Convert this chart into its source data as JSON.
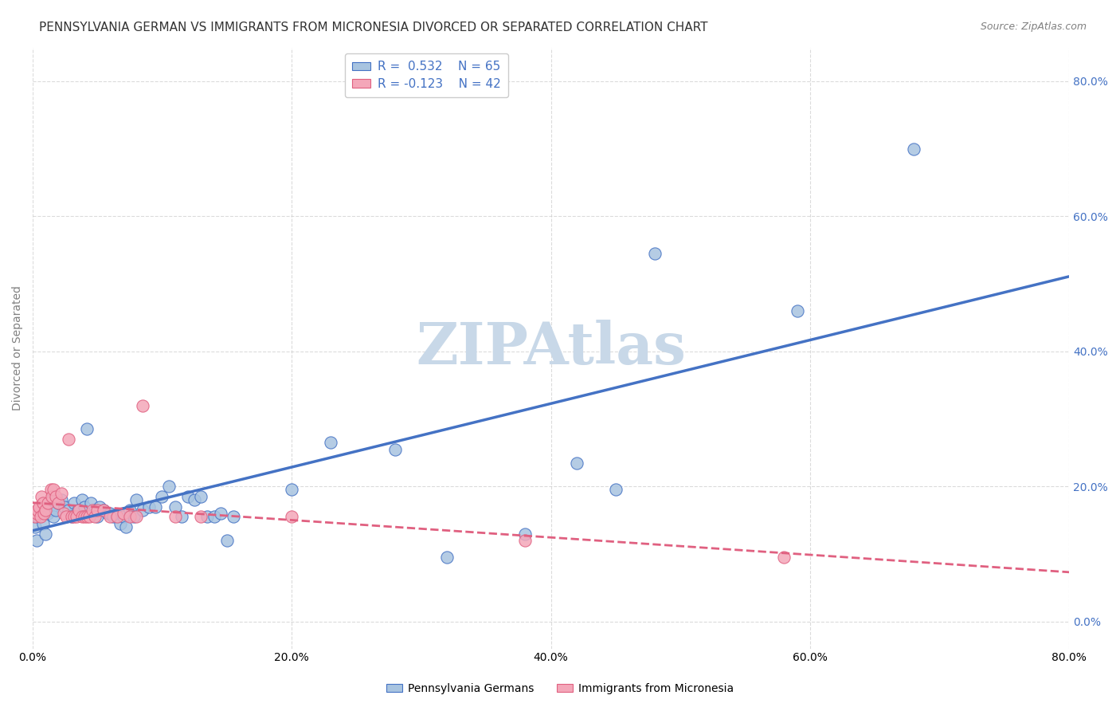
{
  "title": "PENNSYLVANIA GERMAN VS IMMIGRANTS FROM MICRONESIA DIVORCED OR SEPARATED CORRELATION CHART",
  "source": "Source: ZipAtlas.com",
  "xlabel_bottom": "",
  "ylabel": "Divorced or Separated",
  "legend_label1": "Pennsylvania Germans",
  "legend_label2": "Immigrants from Micronesia",
  "r1": 0.532,
  "n1": 65,
  "r2": -0.123,
  "n2": 42,
  "color_blue": "#a8c4e0",
  "color_pink": "#f4a7b9",
  "line_blue": "#4472c4",
  "line_pink": "#e06080",
  "watermark_color": "#c8d8e8",
  "background": "#ffffff",
  "xmin": 0.0,
  "xmax": 0.8,
  "ymin": -0.04,
  "ymax": 0.85,
  "blue_dots": [
    [
      0.001,
      0.155
    ],
    [
      0.002,
      0.14
    ],
    [
      0.003,
      0.12
    ],
    [
      0.004,
      0.155
    ],
    [
      0.005,
      0.16
    ],
    [
      0.006,
      0.16
    ],
    [
      0.007,
      0.165
    ],
    [
      0.008,
      0.145
    ],
    [
      0.009,
      0.17
    ],
    [
      0.01,
      0.13
    ],
    [
      0.012,
      0.16
    ],
    [
      0.014,
      0.165
    ],
    [
      0.015,
      0.18
    ],
    [
      0.016,
      0.155
    ],
    [
      0.018,
      0.165
    ],
    [
      0.02,
      0.175
    ],
    [
      0.022,
      0.18
    ],
    [
      0.025,
      0.17
    ],
    [
      0.028,
      0.165
    ],
    [
      0.03,
      0.155
    ],
    [
      0.032,
      0.175
    ],
    [
      0.035,
      0.165
    ],
    [
      0.038,
      0.18
    ],
    [
      0.04,
      0.17
    ],
    [
      0.042,
      0.285
    ],
    [
      0.045,
      0.175
    ],
    [
      0.048,
      0.165
    ],
    [
      0.05,
      0.155
    ],
    [
      0.052,
      0.17
    ],
    [
      0.055,
      0.165
    ],
    [
      0.058,
      0.16
    ],
    [
      0.06,
      0.16
    ],
    [
      0.062,
      0.155
    ],
    [
      0.065,
      0.155
    ],
    [
      0.068,
      0.145
    ],
    [
      0.07,
      0.155
    ],
    [
      0.072,
      0.14
    ],
    [
      0.075,
      0.165
    ],
    [
      0.078,
      0.155
    ],
    [
      0.08,
      0.18
    ],
    [
      0.085,
      0.165
    ],
    [
      0.09,
      0.17
    ],
    [
      0.095,
      0.17
    ],
    [
      0.1,
      0.185
    ],
    [
      0.105,
      0.2
    ],
    [
      0.11,
      0.17
    ],
    [
      0.115,
      0.155
    ],
    [
      0.12,
      0.185
    ],
    [
      0.125,
      0.18
    ],
    [
      0.13,
      0.185
    ],
    [
      0.135,
      0.155
    ],
    [
      0.14,
      0.155
    ],
    [
      0.145,
      0.16
    ],
    [
      0.15,
      0.12
    ],
    [
      0.155,
      0.155
    ],
    [
      0.2,
      0.195
    ],
    [
      0.23,
      0.265
    ],
    [
      0.28,
      0.255
    ],
    [
      0.32,
      0.095
    ],
    [
      0.38,
      0.13
    ],
    [
      0.42,
      0.235
    ],
    [
      0.45,
      0.195
    ],
    [
      0.48,
      0.545
    ],
    [
      0.59,
      0.46
    ],
    [
      0.68,
      0.7
    ]
  ],
  "pink_dots": [
    [
      0.002,
      0.155
    ],
    [
      0.003,
      0.16
    ],
    [
      0.004,
      0.165
    ],
    [
      0.005,
      0.17
    ],
    [
      0.006,
      0.155
    ],
    [
      0.007,
      0.185
    ],
    [
      0.008,
      0.175
    ],
    [
      0.009,
      0.16
    ],
    [
      0.01,
      0.165
    ],
    [
      0.012,
      0.175
    ],
    [
      0.014,
      0.195
    ],
    [
      0.015,
      0.185
    ],
    [
      0.016,
      0.195
    ],
    [
      0.018,
      0.185
    ],
    [
      0.02,
      0.175
    ],
    [
      0.022,
      0.19
    ],
    [
      0.024,
      0.16
    ],
    [
      0.026,
      0.155
    ],
    [
      0.028,
      0.27
    ],
    [
      0.03,
      0.155
    ],
    [
      0.032,
      0.155
    ],
    [
      0.034,
      0.155
    ],
    [
      0.036,
      0.165
    ],
    [
      0.038,
      0.155
    ],
    [
      0.04,
      0.155
    ],
    [
      0.042,
      0.155
    ],
    [
      0.044,
      0.155
    ],
    [
      0.046,
      0.165
    ],
    [
      0.048,
      0.155
    ],
    [
      0.05,
      0.165
    ],
    [
      0.055,
      0.165
    ],
    [
      0.06,
      0.155
    ],
    [
      0.065,
      0.155
    ],
    [
      0.07,
      0.16
    ],
    [
      0.075,
      0.155
    ],
    [
      0.08,
      0.155
    ],
    [
      0.085,
      0.32
    ],
    [
      0.11,
      0.155
    ],
    [
      0.13,
      0.155
    ],
    [
      0.2,
      0.155
    ],
    [
      0.38,
      0.12
    ],
    [
      0.58,
      0.095
    ]
  ],
  "xtick_labels": [
    "0.0%",
    "20.0%",
    "40.0%",
    "60.0%",
    "80.0%"
  ],
  "xtick_vals": [
    0.0,
    0.2,
    0.4,
    0.6,
    0.8
  ],
  "ytick_labels_right": [
    "80.0%",
    "60.0%",
    "40.0%",
    "20.0%",
    "0.0%"
  ],
  "ytick_vals_right": [
    0.8,
    0.6,
    0.4,
    0.2,
    0.0
  ],
  "grid_color": "#cccccc",
  "title_fontsize": 11,
  "axis_fontsize": 10
}
